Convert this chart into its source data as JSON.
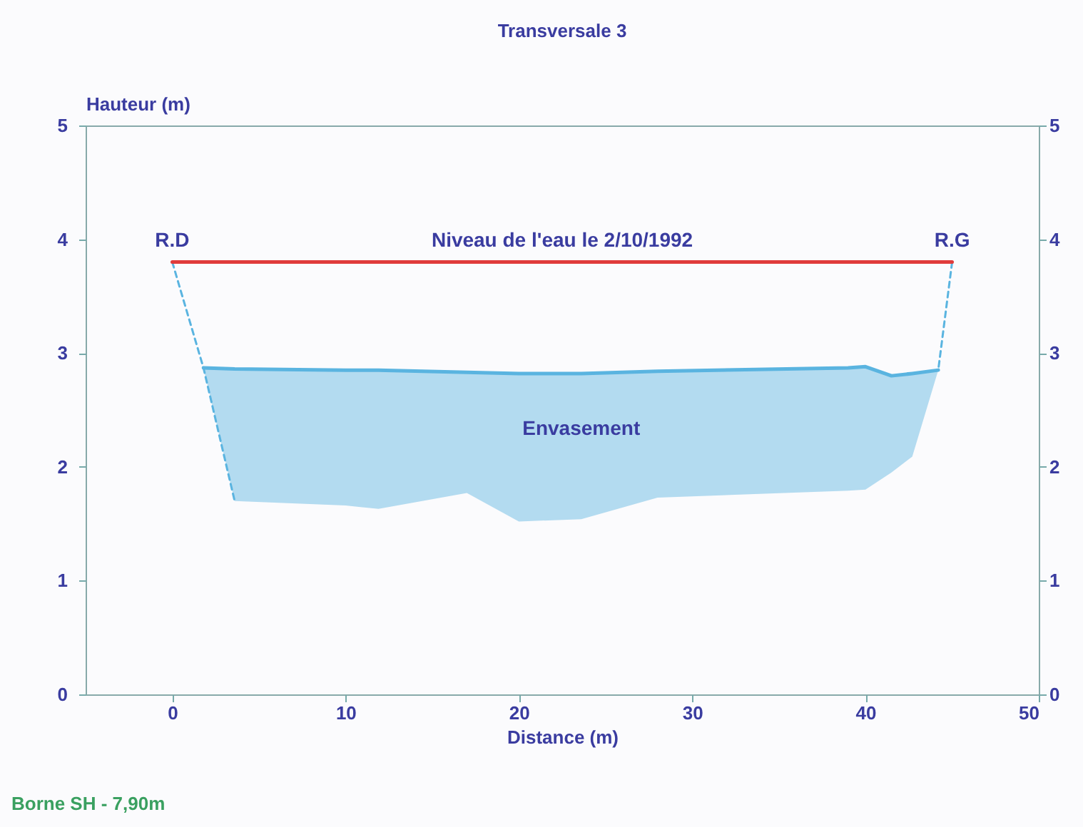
{
  "chart_data": {
    "type": "line",
    "title": "Transversale 3",
    "xlabel": "Distance (m)",
    "ylabel": "Hauteur (m)",
    "xlim": [
      -5,
      50
    ],
    "xticks": [
      0,
      10,
      20,
      30,
      40,
      50
    ],
    "ylim": [
      0,
      5
    ],
    "yticks": [
      0,
      1,
      2,
      3,
      4,
      5
    ],
    "y2lim": [
      0,
      5
    ],
    "y2ticks": [
      0,
      1,
      2,
      3,
      4,
      5
    ],
    "series": [
      {
        "color": "#5ab4e0",
        "line_style": "solid",
        "x": [
          1.8,
          3.6,
          10,
          11.9,
          17,
          20,
          23.6,
          28,
          39,
          40,
          41.5,
          42.7,
          44.2
        ],
        "values": [
          2.87,
          2.86,
          2.85,
          2.85,
          2.83,
          2.82,
          2.82,
          2.84,
          2.87,
          2.88,
          2.8,
          2.82,
          2.85
        ],
        "upper": [
          2.87,
          2.86,
          2.85,
          2.85,
          2.83,
          2.82,
          2.82,
          2.84,
          2.87,
          2.88,
          2.8,
          2.82,
          2.85
        ],
        "lower": [
          2.87,
          1.7,
          1.66,
          1.63,
          1.77,
          1.52,
          1.54,
          1.73,
          1.79,
          1.8,
          1.95,
          2.09,
          2.85
        ]
      },
      {
        "color": "#5ab4e0",
        "line_style": "dashed",
        "x": [
          0,
          1.8,
          3.6
        ],
        "values": [
          3.8,
          2.87,
          1.7
        ]
      },
      {
        "color": "#5ab4e0",
        "line_style": "dashed",
        "x": [
          45,
          44.2
        ],
        "values": [
          3.8,
          2.85
        ]
      },
      {
        "color": "#e03c3c",
        "line_style": "solid",
        "x": [
          0,
          45
        ],
        "values": [
          3.8,
          3.8
        ]
      }
    ],
    "annotations": [
      {
        "text": "Niveau de l'eau le 2/10/1992",
        "x": 22.5,
        "y": 3.8
      },
      "Envasement",
      {
        "text": "R.D",
        "x": 0,
        "y": 3.8
      },
      {
        "text": "R.G",
        "x": 45,
        "y": 3.8
      },
      "Borne SH - 7,90m"
    ]
  }
}
